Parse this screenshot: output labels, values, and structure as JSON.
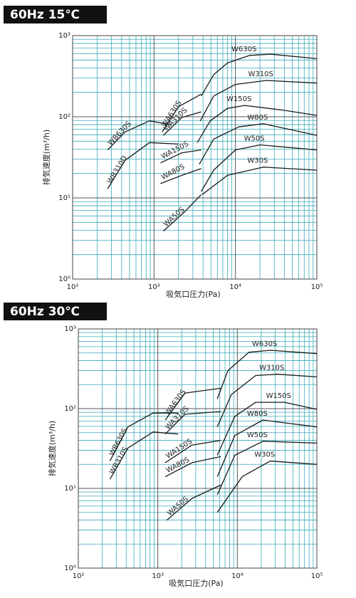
{
  "chart_data": [
    {
      "type": "line",
      "title": "60Hz  15℃",
      "x_label": "吸気口圧力(Pa)",
      "y_label": "排気速度(m³/h)",
      "log_x": true,
      "log_y": true,
      "grid": true,
      "grid_color": "#3aa9b9",
      "color": "#1a1a1a",
      "xlim": [
        100,
        100000
      ],
      "ylim": [
        1,
        1000
      ],
      "xticks": [
        {
          "value": 100,
          "label": "10²"
        },
        {
          "value": 1000,
          "label": "10³"
        },
        {
          "value": 10000,
          "label": "10⁴"
        },
        {
          "value": 100000,
          "label": "10⁵"
        }
      ],
      "yticks": [
        {
          "value": 1,
          "label": "10⁰"
        },
        {
          "value": 10,
          "label": "10¹"
        },
        {
          "value": 100,
          "label": "10²"
        },
        {
          "value": 1000,
          "label": "10³"
        }
      ],
      "series": [
        {
          "name": "W630S",
          "x": [
            3800,
            5400,
            8000,
            15000,
            27000,
            100000
          ],
          "values": [
            180,
            330,
            460,
            570,
            590,
            520
          ]
        },
        {
          "name": "W310S",
          "x": [
            3700,
            5400,
            10000,
            24000,
            100000
          ],
          "values": [
            89,
            180,
            250,
            280,
            260
          ]
        },
        {
          "name": "W150S",
          "x": [
            3400,
            4900,
            8000,
            13000,
            40000,
            100000
          ],
          "values": [
            48,
            89,
            127,
            138,
            120,
            104
          ]
        },
        {
          "name": "W80S",
          "x": [
            3600,
            5400,
            11000,
            22000,
            100000
          ],
          "values": [
            26,
            53,
            75,
            82,
            59
          ]
        },
        {
          "name": "W50S",
          "x": [
            3800,
            5400,
            10000,
            20000,
            100000
          ],
          "values": [
            12,
            22,
            39,
            45,
            39
          ]
        },
        {
          "name": "W30S",
          "x": [
            3900,
            8000,
            22000,
            100000
          ],
          "values": [
            11,
            19,
            24,
            22
          ]
        },
        {
          "name": "WA630S",
          "x": [
            1260,
            2000,
            3800
          ],
          "values": [
            65,
            133,
            190
          ]
        },
        {
          "name": "WA310S",
          "x": [
            1300,
            2200,
            3800
          ],
          "values": [
            59,
            98,
            115
          ]
        },
        {
          "name": "WA150S",
          "x": [
            1200,
            2200,
            3800
          ],
          "values": [
            27,
            36,
            39
          ]
        },
        {
          "name": "WA80S",
          "x": [
            1200,
            2200,
            3800
          ],
          "values": [
            15,
            19,
            23
          ]
        },
        {
          "name": "WA50S",
          "x": [
            1300,
            2400,
            3800
          ],
          "values": [
            3.9,
            6.8,
            11
          ]
        },
        {
          "name": "WB630S",
          "x": [
            270,
            440,
            880,
            1600
          ],
          "values": [
            39,
            65,
            89,
            80
          ]
        },
        {
          "name": "WB310D",
          "x": [
            270,
            440,
            880,
            2000
          ],
          "values": [
            13,
            29,
            48,
            46
          ]
        }
      ]
    },
    {
      "type": "line",
      "title": "60Hz  30℃",
      "x_label": "吸気口圧力(Pa)",
      "y_label": "排気速度(m³/h)",
      "log_x": true,
      "log_y": true,
      "grid": true,
      "grid_color": "#3aa9b9",
      "color": "#1a1a1a",
      "xlim": [
        100,
        100000
      ],
      "ylim": [
        1,
        1000
      ],
      "xticks": [
        {
          "value": 100,
          "label": "10²"
        },
        {
          "value": 1000,
          "label": "10³"
        },
        {
          "value": 10000,
          "label": "10⁴"
        },
        {
          "value": 100000,
          "label": "10⁵"
        }
      ],
      "yticks": [
        {
          "value": 1,
          "label": "10⁰"
        },
        {
          "value": 10,
          "label": "10¹"
        },
        {
          "value": 100,
          "label": "10²"
        },
        {
          "value": 1000,
          "label": "10³"
        }
      ],
      "series": [
        {
          "name": "W630S",
          "x": [
            5600,
            7600,
            14000,
            26000,
            100000
          ],
          "values": [
            133,
            300,
            510,
            540,
            490
          ]
        },
        {
          "name": "W310S",
          "x": [
            5600,
            8400,
            17000,
            32000,
            100000
          ],
          "values": [
            59,
            150,
            260,
            270,
            250
          ]
        },
        {
          "name": "W150S",
          "x": [
            5600,
            9300,
            17000,
            39000,
            100000
          ],
          "values": [
            26,
            80,
            120,
            120,
            98
          ]
        },
        {
          "name": "W80S",
          "x": [
            5600,
            9300,
            21000,
            100000
          ],
          "values": [
            14,
            46,
            72,
            59
          ]
        },
        {
          "name": "W50S",
          "x": [
            5600,
            9300,
            21000,
            100000
          ],
          "values": [
            8.3,
            26,
            39,
            37
          ]
        },
        {
          "name": "W30S",
          "x": [
            5600,
            11500,
            26000,
            100000
          ],
          "values": [
            5,
            14,
            22,
            20
          ]
        },
        {
          "name": "WA630S",
          "x": [
            1240,
            2200,
            6200
          ],
          "values": [
            72,
            157,
            180
          ]
        },
        {
          "name": "WA310S",
          "x": [
            1240,
            2200,
            6200
          ],
          "values": [
            48,
            85,
            92
          ]
        },
        {
          "name": "WA150S",
          "x": [
            1240,
            2700,
            6200
          ],
          "values": [
            21,
            35,
            40
          ]
        },
        {
          "name": "WA80S",
          "x": [
            1240,
            2700,
            6200
          ],
          "values": [
            14,
            21,
            25
          ]
        },
        {
          "name": "WA50S",
          "x": [
            1300,
            2700,
            6200
          ],
          "values": [
            4,
            7.5,
            11
          ]
        },
        {
          "name": "WB630S",
          "x": [
            250,
            420,
            870,
            1800
          ],
          "values": [
            22,
            59,
            88,
            88
          ]
        },
        {
          "name": "WB310S",
          "x": [
            250,
            420,
            870,
            1800
          ],
          "values": [
            13,
            32,
            51,
            48
          ]
        }
      ]
    }
  ]
}
